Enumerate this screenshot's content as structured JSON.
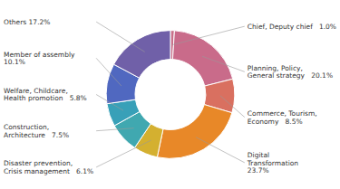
{
  "chart_data": {
    "type": "donut",
    "categories": [
      "Chief, Deputy chief   1.0%",
      "Planning, Policy,\nGeneral strategy   20.1%",
      "Commerce, Tourism,\nEconomy   8.5%",
      "Digital\nTransformation\n23.7%",
      "Disaster prevention,\nCrisis management   6.1%",
      "Construction,\nArchitecture   7.5%",
      "Welfare, Childcare,\nHealth promotion   5.8%",
      "Member of assembly\n10.1%",
      "Others 17.2%"
    ],
    "values": [
      1.0,
      20.1,
      8.5,
      23.7,
      6.1,
      7.5,
      5.8,
      10.1,
      17.2
    ],
    "colors": [
      "#c9718a",
      "#c96b8a",
      "#d97060",
      "#e88828",
      "#d4b030",
      "#40a8b0",
      "#38a0b8",
      "#5068c0",
      "#7060a8"
    ]
  }
}
